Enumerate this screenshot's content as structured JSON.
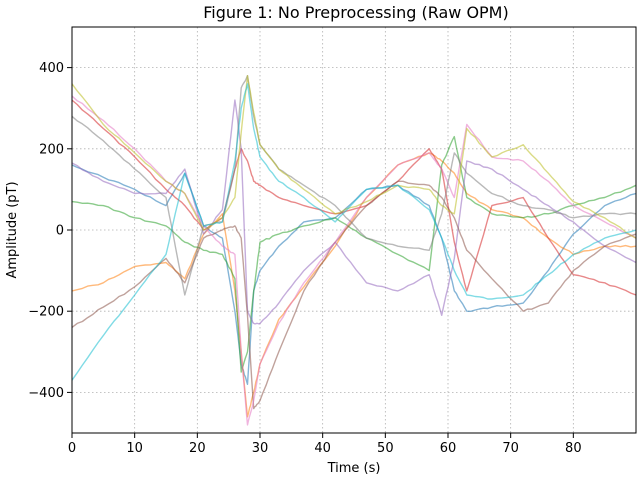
{
  "chart_data": {
    "type": "line",
    "title": "Figure 1: No Preprocessing (Raw OPM)",
    "xlabel": "Time (s)",
    "ylabel": "Amplitude (pT)",
    "xlim": [
      0,
      90
    ],
    "ylim": [
      -500,
      500
    ],
    "xticks": [
      0,
      10,
      20,
      30,
      40,
      50,
      60,
      70,
      80
    ],
    "yticks": [
      -400,
      -200,
      0,
      200,
      400
    ],
    "xtick_labels": [
      "0",
      "10",
      "20",
      "30",
      "40",
      "50",
      "60",
      "70",
      "80"
    ],
    "ytick_labels": [
      "−400",
      "−200",
      "0",
      "200",
      "400"
    ],
    "grid": true,
    "legend": "none",
    "x": [
      0,
      5,
      10,
      15,
      18,
      21,
      24,
      26,
      27,
      28,
      29,
      30,
      33,
      37,
      42,
      47,
      52,
      57,
      59,
      61,
      63,
      67,
      72,
      76,
      80,
      85,
      90
    ],
    "series": [
      {
        "color": "#1f77b4",
        "values": [
          160,
          130,
          100,
          60,
          140,
          10,
          -20,
          -200,
          -330,
          -380,
          -150,
          -100,
          -40,
          20,
          30,
          100,
          110,
          60,
          -20,
          -150,
          -200,
          -190,
          -180,
          -100,
          -10,
          60,
          90
        ]
      },
      {
        "color": "#ff7f0e",
        "values": [
          -150,
          -130,
          -90,
          -80,
          -120,
          -10,
          40,
          -150,
          -300,
          -460,
          -400,
          -330,
          -220,
          -140,
          -40,
          80,
          160,
          190,
          170,
          140,
          90,
          50,
          30,
          -20,
          -60,
          -40,
          -40
        ]
      },
      {
        "color": "#2ca02c",
        "values": [
          70,
          60,
          30,
          10,
          -30,
          -50,
          -60,
          -120,
          -350,
          -300,
          -150,
          -30,
          -10,
          10,
          30,
          -20,
          -60,
          -100,
          160,
          230,
          80,
          40,
          30,
          40,
          60,
          80,
          110
        ]
      },
      {
        "color": "#d62728",
        "values": [
          320,
          250,
          180,
          100,
          60,
          0,
          30,
          150,
          200,
          170,
          120,
          110,
          80,
          60,
          40,
          60,
          120,
          200,
          150,
          -30,
          -150,
          60,
          80,
          -20,
          -110,
          -130,
          -160
        ]
      },
      {
        "color": "#9467bd",
        "values": [
          165,
          120,
          90,
          90,
          150,
          -10,
          50,
          320,
          200,
          -200,
          -230,
          -230,
          -180,
          -100,
          -30,
          -130,
          -150,
          -110,
          -210,
          -70,
          170,
          150,
          100,
          60,
          20,
          -40,
          -80
        ]
      },
      {
        "color": "#8c564b",
        "values": [
          -240,
          -190,
          -140,
          -70,
          -130,
          -20,
          0,
          10,
          -20,
          -210,
          -440,
          -420,
          -300,
          -150,
          -30,
          60,
          120,
          110,
          80,
          30,
          -50,
          -120,
          -200,
          -180,
          -100,
          -40,
          -10
        ]
      },
      {
        "color": "#e377c2",
        "values": [
          330,
          270,
          200,
          120,
          90,
          10,
          -40,
          -60,
          -300,
          -480,
          -420,
          -330,
          -230,
          -130,
          -30,
          80,
          160,
          190,
          150,
          80,
          260,
          180,
          170,
          120,
          60,
          20,
          -20
        ]
      },
      {
        "color": "#7f7f7f",
        "values": [
          280,
          220,
          150,
          80,
          -160,
          10,
          20,
          150,
          350,
          380,
          280,
          210,
          150,
          110,
          60,
          -20,
          -40,
          -50,
          40,
          190,
          140,
          90,
          60,
          50,
          30,
          40,
          40
        ]
      },
      {
        "color": "#bcbd22",
        "values": [
          360,
          260,
          190,
          120,
          90,
          0,
          30,
          80,
          240,
          380,
          290,
          210,
          150,
          100,
          40,
          70,
          110,
          100,
          60,
          40,
          250,
          180,
          210,
          140,
          70,
          30,
          -20
        ]
      },
      {
        "color": "#17becf",
        "values": [
          -370,
          -260,
          -160,
          -60,
          140,
          10,
          20,
          170,
          300,
          360,
          250,
          180,
          120,
          80,
          20,
          100,
          110,
          50,
          -20,
          -100,
          -160,
          -170,
          -160,
          -110,
          -60,
          -20,
          0
        ]
      }
    ]
  }
}
